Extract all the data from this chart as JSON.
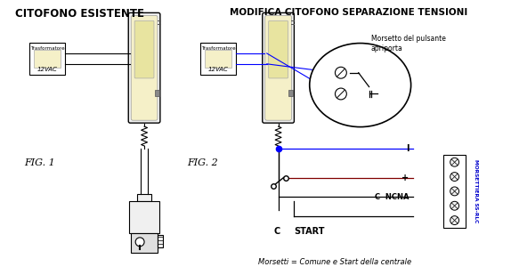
{
  "title_left": "CITOFONO ESISTENTE",
  "title_right": "MODIFICA CITOFONO SEPARAZIONE TENSIONI",
  "fig1_label": "FIG. 1",
  "fig2_label": "FIG. 2",
  "transformer_label": "Trasformatore",
  "voltage_label": "12VAC",
  "morsetto_label_1": "Morsetto del pulsante",
  "morsetto_label_2": "apriporta",
  "morsettiera_label": "MORSETTIERA SS-RLC",
  "terminal_I": "I",
  "terminal_plus": "+",
  "terminal_c_ncna": "C  NCNA",
  "bottom_label_c": "C",
  "bottom_label_start": "START",
  "bottom_note": "Morsetti = Comune e Start della centrale",
  "bg_color": "#ffffff",
  "border_color": "#000000",
  "phone_fill": "#f5f0c8",
  "phone_inner_fill": "#e8e4a0",
  "transformer_fill": "#f5f0c8",
  "blue_wire": "#0000ff",
  "dark_red_wire": "#800000",
  "black_wire": "#000000",
  "blue_text": "#0000cc",
  "gray_fill": "#d8d8d8",
  "light_gray": "#f0f0f0"
}
